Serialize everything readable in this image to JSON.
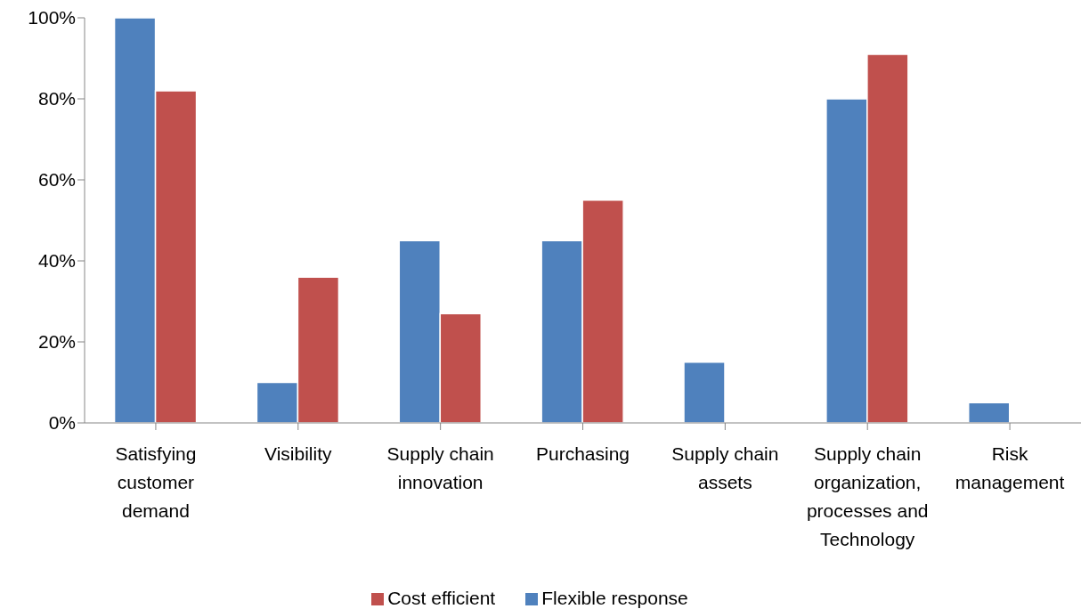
{
  "chart_data": {
    "type": "bar",
    "categories": [
      "Satisfying customer demand",
      "Visibility",
      "Supply chain innovation",
      "Purchasing",
      "Supply chain assets",
      "Supply chain organization, processes and Technology",
      "Risk management"
    ],
    "series": [
      {
        "name": "Flexible response",
        "color": "#4f81bd",
        "values": [
          100,
          10,
          45,
          45,
          15,
          80,
          5
        ]
      },
      {
        "name": "Cost efficient",
        "color": "#c0504d",
        "values": [
          82,
          36,
          27,
          55,
          null,
          91,
          null
        ]
      }
    ],
    "ylim": [
      0,
      100
    ],
    "yticks": [
      {
        "value": 0,
        "label": "0%"
      },
      {
        "value": 20,
        "label": "20%"
      },
      {
        "value": 40,
        "label": "40%"
      },
      {
        "value": 60,
        "label": "60%"
      },
      {
        "value": 80,
        "label": "80%"
      },
      {
        "value": 100,
        "label": "100%"
      }
    ],
    "grid": false,
    "legend": "bottom"
  }
}
